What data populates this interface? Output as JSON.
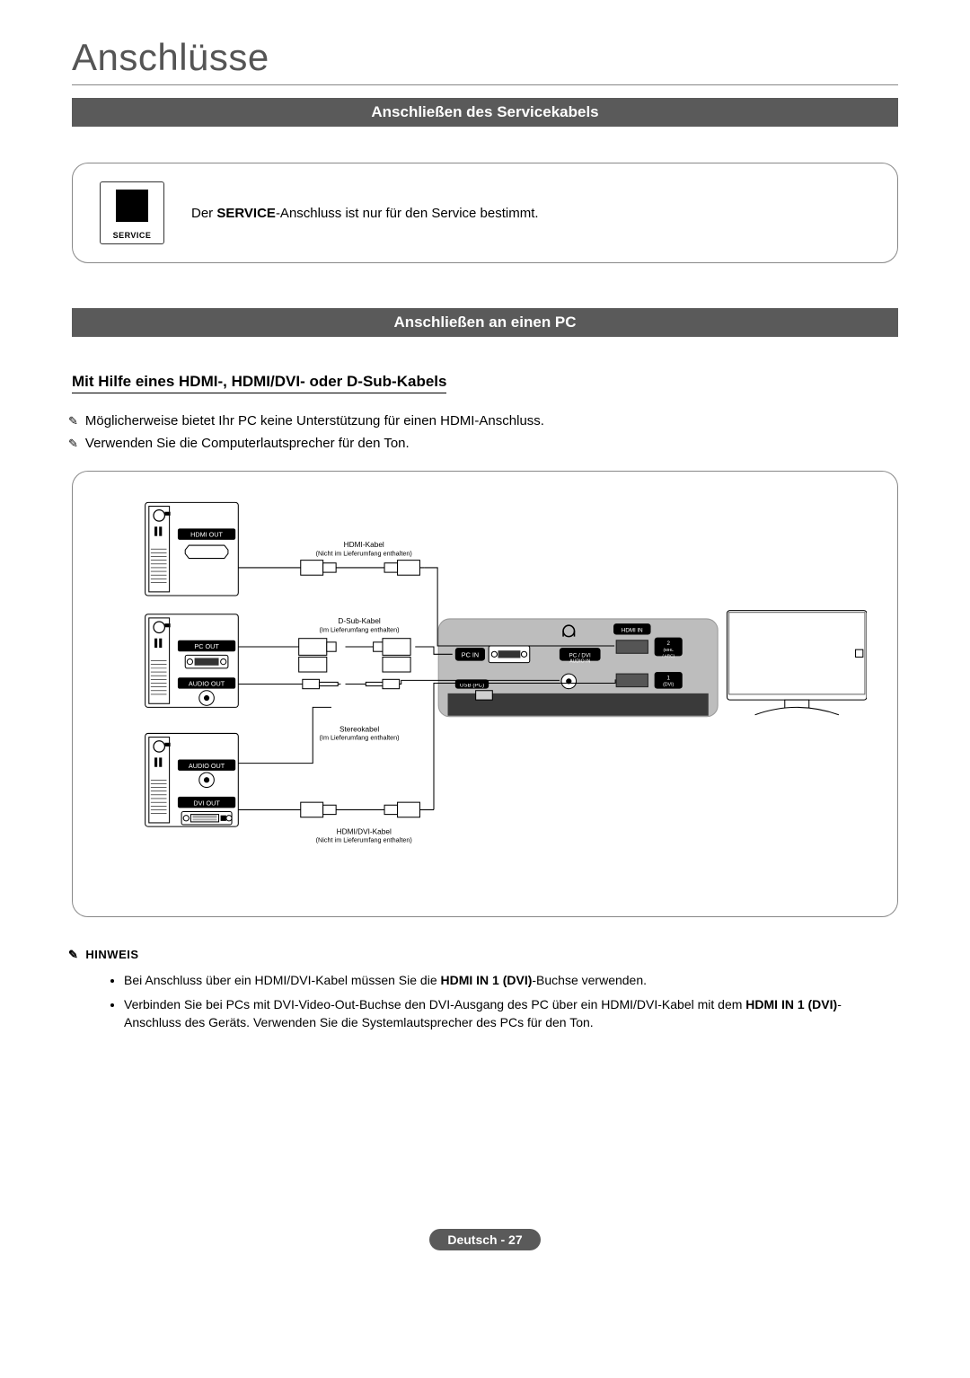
{
  "page_title": "Anschlüsse",
  "section1": {
    "bar": "Anschließen des Servicekabels",
    "port_label": "SERVICE",
    "text_prefix": "Der ",
    "text_bold": "SERVICE",
    "text_suffix": "-Anschluss ist nur für den Service bestimmt."
  },
  "section2": {
    "bar": "Anschließen an einen PC",
    "subheading": "Mit Hilfe eines HDMI-, HDMI/DVI- oder D-Sub-Kabels",
    "notes": [
      "Möglicherweise bietet Ihr PC keine Unterstützung für einen HDMI-Anschluss.",
      "Verwenden Sie die Computerlautsprecher für den Ton."
    ]
  },
  "diagram": {
    "cables": [
      {
        "name": "HDMI-Kabel",
        "sub": "(Nicht im Lieferumfang enthalten)"
      },
      {
        "name": "D-Sub-Kabel",
        "sub": "(Im Lieferumfang enthalten)"
      },
      {
        "name": "Stereokabel",
        "sub": "(Im Lieferumfang enthalten)"
      },
      {
        "name": "HDMI/DVI-Kabel",
        "sub": "(Nicht im Lieferumfang enthalten)"
      }
    ],
    "pc_ports": [
      "HDMI OUT",
      "PC OUT",
      "AUDIO OUT",
      "AUDIO OUT",
      "DVI OUT"
    ],
    "tv_ports": [
      "PC IN",
      "USB (PC)",
      "PC / DVI AUDIO IN",
      "HDMI IN",
      "2 (MHL / ARC)",
      "1 (DVI)"
    ],
    "colors": {
      "panel_stroke": "#888888",
      "wire": "#000000",
      "tv_bg": "#bdbdbd",
      "tv_port_bg": "#3a3a3a",
      "pc_body": "#ffffff",
      "pc_stroke": "#000000"
    }
  },
  "hinweis": {
    "title": "HINWEIS",
    "items": [
      {
        "pre": "Bei Anschluss über ein HDMI/DVI-Kabel müssen Sie die ",
        "bold": "HDMI IN 1 (DVI)",
        "post": "-Buchse verwenden."
      },
      {
        "pre": "Verbinden Sie bei PCs mit DVI-Video-Out-Buchse den DVI-Ausgang des PC über ein HDMI/DVI-Kabel mit dem ",
        "bold": "HDMI IN 1 (DVI)",
        "post": "-Anschluss des Geräts. Verwenden Sie die Systemlautsprecher des PCs für den Ton."
      }
    ]
  },
  "footer": {
    "lang": "Deutsch",
    "sep": " - ",
    "page": "27"
  }
}
